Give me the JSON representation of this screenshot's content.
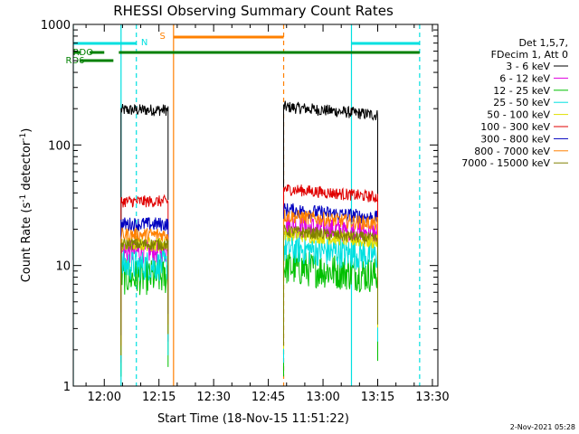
{
  "chart_data": {
    "type": "line",
    "title": "RHESSI Observing Summary Count Rates",
    "xlabel": "Start Time (18-Nov-15 11:51:22)",
    "ylabel": "Count Rate (s",
    "ylabel_sup1": "-1",
    "ylabel_mid": " detector",
    "ylabel_sup2": "-1",
    "ylabel_end": ")",
    "y_scale": "log",
    "ylim": [
      1,
      1000
    ],
    "xlim_minutes": [
      -8.5,
      91.5
    ],
    "x_ticks": [
      {
        "t": 0,
        "label": "12:00"
      },
      {
        "t": 15,
        "label": "12:15"
      },
      {
        "t": 30,
        "label": "12:30"
      },
      {
        "t": 45,
        "label": "12:45"
      },
      {
        "t": 60,
        "label": "13:00"
      },
      {
        "t": 75,
        "label": "13:15"
      },
      {
        "t": 90,
        "label": "13:30"
      }
    ],
    "y_ticks": [
      {
        "v": 1,
        "label": "1"
      },
      {
        "v": 10,
        "label": "10"
      },
      {
        "v": 100,
        "label": "100"
      },
      {
        "v": 1000,
        "label": "1000"
      }
    ],
    "legend_header": [
      "Det 1,5,7,",
      "FDecim 1, Att 0"
    ],
    "series": [
      {
        "name": "3 - 6 keV",
        "color": "#000000",
        "seg1": 195,
        "seg2": 192,
        "noise": 0.05
      },
      {
        "name": "6 - 12 keV",
        "color": "#e000e0",
        "seg1": 13,
        "seg2": 20,
        "noise": 0.1
      },
      {
        "name": "12 - 25 keV",
        "color": "#00c000",
        "seg1": 8,
        "seg2": 9,
        "noise": 0.15
      },
      {
        "name": "25 - 50 keV",
        "color": "#00e0e0",
        "seg1": 10,
        "seg2": 13,
        "noise": 0.13
      },
      {
        "name": "50 - 100 keV",
        "color": "#e0e000",
        "seg1": 15,
        "seg2": 17,
        "noise": 0.06
      },
      {
        "name": "100 - 300 keV",
        "color": "#e00000",
        "seg1": 34,
        "seg2": 40,
        "noise": 0.05
      },
      {
        "name": "300 - 800 keV",
        "color": "#0000c0",
        "seg1": 22,
        "seg2": 27,
        "noise": 0.06
      },
      {
        "name": "800 - 7000 keV",
        "color": "#ff8000",
        "seg1": 18,
        "seg2": 24,
        "noise": 0.06
      },
      {
        "name": "7000 - 15000 keV",
        "color": "#808000",
        "seg1": 15,
        "seg2": 18,
        "noise": 0.05
      }
    ],
    "data_segments_minutes": [
      [
        4.6,
        17.5
      ],
      [
        49.2,
        75.0
      ]
    ],
    "vlines": [
      {
        "t": -8.5,
        "color": "#00e0e0",
        "dashed": false
      },
      {
        "t": 4.6,
        "color": "#00e0e0",
        "dashed": false
      },
      {
        "t": 8.8,
        "color": "#00e0e0",
        "dashed": true
      },
      {
        "t": 19.0,
        "color": "#ff8000",
        "dashed": false
      },
      {
        "t": 49.2,
        "color": "#ff8000",
        "dashed": true
      },
      {
        "t": 67.8,
        "color": "#00e0e0",
        "dashed": false
      },
      {
        "t": 86.5,
        "color": "#00e0e0",
        "dashed": true
      }
    ],
    "flag_bars": [
      {
        "label": "N",
        "color": "#00e0e0",
        "y": 48,
        "spans": [
          [
            -8.5,
            8.8
          ],
          [
            67.8,
            86.5
          ]
        ],
        "label_t": 11.0,
        "label_y": 50
      },
      {
        "label": "S",
        "color": "#ff8000",
        "y": 41,
        "spans": [
          [
            19.0,
            49.2
          ]
        ],
        "label_t": 16.0,
        "label_y": 43
      },
      {
        "label": "RDO",
        "color": "#008000",
        "y": 58,
        "spans": [
          [
            -8.5,
            -6.5
          ],
          [
            -4.0,
            0.0
          ],
          [
            4.0,
            86.5
          ]
        ],
        "label_t": -5.8,
        "label_y": 61
      },
      {
        "label": "RD6",
        "color": "#008000",
        "y": 67,
        "spans": [
          [
            -6.5,
            2.5
          ]
        ],
        "label_t": -8.0,
        "label_y": 70
      }
    ],
    "footer_date": "2-Nov-2021 05:28"
  }
}
